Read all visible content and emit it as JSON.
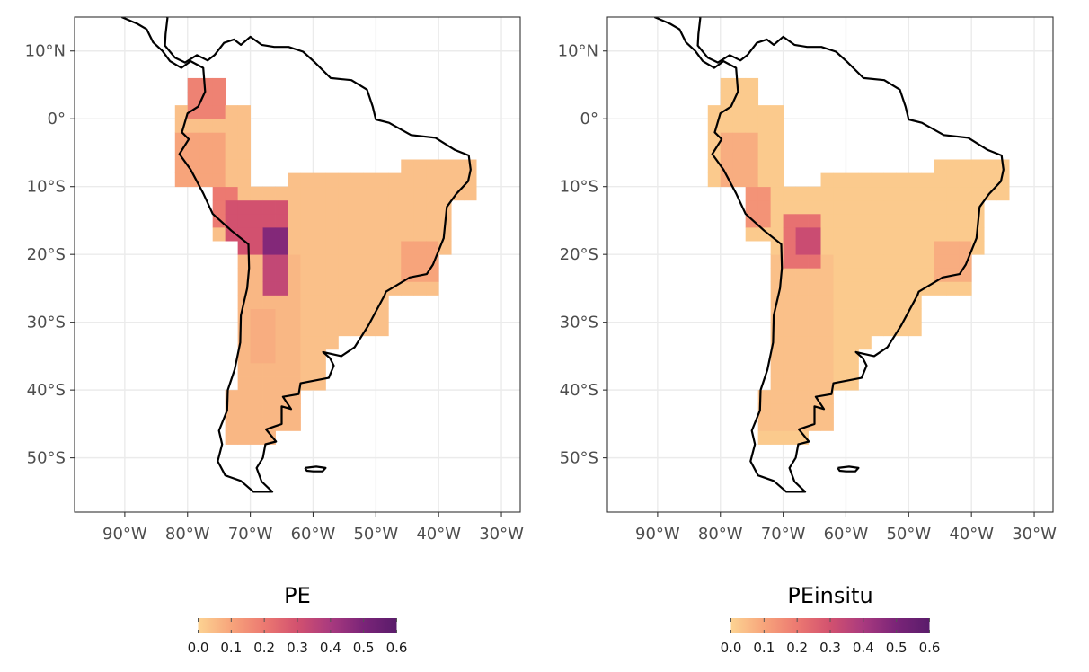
{
  "map_data": {
    "type": "faceted-choropleth-map",
    "region": "South America",
    "lon_range": [
      -98,
      -27
    ],
    "lat_range": [
      -58,
      15
    ],
    "x_ticks": [
      {
        "lon": -90,
        "label": "90°W"
      },
      {
        "lon": -80,
        "label": "80°W"
      },
      {
        "lon": -70,
        "label": "70°W"
      },
      {
        "lon": -60,
        "label": "60°W"
      },
      {
        "lon": -50,
        "label": "50°W"
      },
      {
        "lon": -40,
        "label": "40°W"
      },
      {
        "lon": -30,
        "label": "30°W"
      }
    ],
    "y_ticks": [
      {
        "lat": 10,
        "label": "10°N"
      },
      {
        "lat": 0,
        "label": "0°"
      },
      {
        "lat": -10,
        "label": "10°S"
      },
      {
        "lat": -20,
        "label": "20°S"
      },
      {
        "lat": -30,
        "label": "30°S"
      },
      {
        "lat": -40,
        "label": "40°S"
      },
      {
        "lat": -50,
        "label": "50°S"
      }
    ],
    "grid": true,
    "colorscale": {
      "name": "magma-reversed",
      "range": [
        0,
        0.6
      ],
      "stops": [
        "#fcd392",
        "#f7a47b",
        "#ec7971",
        "#d2516f",
        "#a93a7f",
        "#7a2478",
        "#5a1c6b"
      ],
      "ticks": [
        "0.0",
        "0.1",
        "0.2",
        "0.3",
        "0.4",
        "0.5",
        "0.6"
      ]
    },
    "panels": [
      {
        "legend_title": "PE",
        "regions": [
          {
            "lon": [
              -64,
              -34
            ],
            "lat": [
              -44,
              -6
            ],
            "value": 0.04
          },
          {
            "lon": [
              -74,
              -62
            ],
            "lat": [
              -48,
              -20
            ],
            "value": 0.06
          },
          {
            "lon": [
              -70,
              -66
            ],
            "lat": [
              -36,
              -28
            ],
            "value": 0.08
          },
          {
            "lon": [
              -46,
              -40
            ],
            "lat": [
              -24,
              -18
            ],
            "value": 0.1
          },
          {
            "lon": [
              -82,
              -74
            ],
            "lat": [
              -10,
              -2
            ],
            "value": 0.1
          },
          {
            "lon": [
              -79,
              -74
            ],
            "lat": [
              0,
              6
            ],
            "value": 0.18
          },
          {
            "lon": [
              -76,
              -72
            ],
            "lat": [
              -16,
              -10
            ],
            "value": 0.2
          },
          {
            "lon": [
              -74,
              -64
            ],
            "lat": [
              -20,
              -12
            ],
            "value": 0.3
          },
          {
            "lon": [
              -68,
              -64
            ],
            "lat": [
              -26,
              -20
            ],
            "value": 0.34
          },
          {
            "lon": [
              -67,
              -64
            ],
            "lat": [
              -20,
              -16
            ],
            "value": 0.48
          }
        ]
      },
      {
        "legend_title": "PEinsitu",
        "regions": [
          {
            "lon": [
              -64,
              -34
            ],
            "lat": [
              -44,
              -6
            ],
            "value": 0.02
          },
          {
            "lon": [
              -74,
              -62
            ],
            "lat": [
              -46,
              -20
            ],
            "value": 0.04
          },
          {
            "lon": [
              -46,
              -40
            ],
            "lat": [
              -24,
              -18
            ],
            "value": 0.08
          },
          {
            "lon": [
              -80,
              -74
            ],
            "lat": [
              -10,
              -2
            ],
            "value": 0.08
          },
          {
            "lon": [
              -76,
              -72
            ],
            "lat": [
              -16,
              -10
            ],
            "value": 0.14
          },
          {
            "lon": [
              -70,
              -64
            ],
            "lat": [
              -22,
              -14
            ],
            "value": 0.22
          },
          {
            "lon": [
              -67,
              -64
            ],
            "lat": [
              -20,
              -16
            ],
            "value": 0.32
          }
        ]
      }
    ]
  }
}
